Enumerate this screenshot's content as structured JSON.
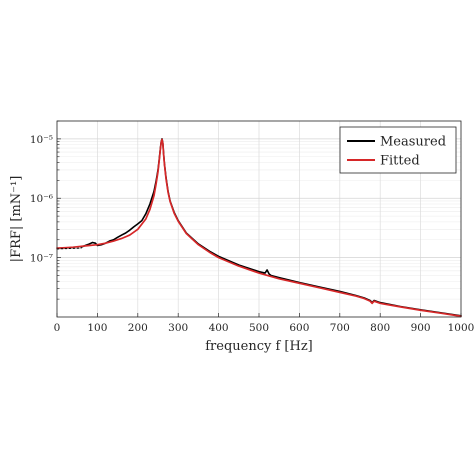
{
  "chart_data": {
    "type": "line",
    "xlabel": "frequency f [Hz]",
    "ylabel": "|FRF| [mN⁻¹]",
    "xlim": [
      0,
      1000
    ],
    "ylim": [
      1e-08,
      2e-05
    ],
    "yscale": "log",
    "grid": true,
    "legend_position": "top-right",
    "x_ticks": [
      0,
      100,
      200,
      300,
      400,
      500,
      600,
      700,
      800,
      900,
      1000
    ],
    "x_tick_labels": [
      "0",
      "100",
      "200",
      "300",
      "400",
      "500",
      "600",
      "700",
      "800",
      "900",
      "1000"
    ],
    "y_ticks": [
      1e-07,
      1e-06,
      1e-05
    ],
    "y_tick_labels": [
      "10⁻⁷",
      "10⁻⁶",
      "10⁻⁵"
    ],
    "series": [
      {
        "name": "Measured",
        "color": "#000000",
        "x": [
          60,
          70,
          80,
          88,
          95,
          100,
          110,
          120,
          130,
          140,
          150,
          160,
          170,
          180,
          190,
          200,
          210,
          220,
          230,
          240,
          245,
          250,
          253,
          256,
          258,
          260,
          262,
          264,
          266,
          270,
          275,
          280,
          290,
          300,
          320,
          350,
          380,
          400,
          450,
          500,
          515,
          520,
          525,
          530,
          550,
          600,
          650,
          700,
          740,
          760,
          775,
          780,
          785,
          800,
          850,
          900,
          950,
          1000
        ],
        "y": [
          1.5e-07,
          1.6e-07,
          1.7e-07,
          1.8e-07,
          1.75e-07,
          1.6e-07,
          1.65e-07,
          1.75e-07,
          1.9e-07,
          2e-07,
          2.2e-07,
          2.4e-07,
          2.6e-07,
          2.9e-07,
          3.3e-07,
          3.7e-07,
          4.2e-07,
          5.5e-07,
          8e-07,
          1.3e-06,
          1.9e-06,
          3e-06,
          4.5e-06,
          7e-06,
          9e-06,
          1e-05,
          8.5e-06,
          5.5e-06,
          3.8e-06,
          2.2e-06,
          1.3e-06,
          9e-07,
          5.8e-07,
          4.2e-07,
          2.6e-07,
          1.7e-07,
          1.25e-07,
          1.05e-07,
          7.5e-08,
          5.8e-08,
          5.5e-08,
          6.2e-08,
          5.3e-08,
          5e-08,
          4.6e-08,
          3.8e-08,
          3.2e-08,
          2.7e-08,
          2.3e-08,
          2.1e-08,
          1.9e-08,
          1.75e-08,
          1.9e-08,
          1.75e-08,
          1.5e-08,
          1.32e-08,
          1.18e-08,
          1.05e-08
        ]
      },
      {
        "name": "Fitted",
        "color": "#d62728",
        "x": [
          0,
          20,
          40,
          60,
          80,
          100,
          120,
          140,
          160,
          180,
          200,
          220,
          230,
          240,
          245,
          250,
          253,
          256,
          258,
          260,
          262,
          264,
          266,
          270,
          275,
          280,
          290,
          300,
          320,
          350,
          380,
          400,
          450,
          500,
          550,
          600,
          650,
          700,
          740,
          760,
          775,
          780,
          785,
          800,
          850,
          900,
          950,
          1000
        ],
        "y": [
          1.45e-07,
          1.47e-07,
          1.5e-07,
          1.55e-07,
          1.6e-07,
          1.65e-07,
          1.75e-07,
          1.9e-07,
          2.1e-07,
          2.4e-07,
          3e-07,
          4.5e-07,
          6.5e-07,
          1.1e-06,
          1.7e-06,
          2.8e-06,
          4.3e-06,
          6.8e-06,
          8.8e-06,
          9.8e-06,
          8.3e-06,
          5.4e-06,
          3.7e-06,
          2.1e-06,
          1.25e-06,
          8.8e-07,
          5.6e-07,
          4.1e-07,
          2.55e-07,
          1.65e-07,
          1.2e-07,
          1e-07,
          7.2e-08,
          5.5e-08,
          4.4e-08,
          3.7e-08,
          3.1e-08,
          2.6e-08,
          2.25e-08,
          2.05e-08,
          1.85e-08,
          1.7e-08,
          1.85e-08,
          1.7e-08,
          1.48e-08,
          1.3e-08,
          1.16e-08,
          1.03e-08
        ]
      },
      {
        "name": "",
        "color": "#000000",
        "dashed": true,
        "x": [
          0,
          60
        ],
        "y": [
          1.4e-07,
          1.45e-07
        ]
      }
    ]
  }
}
